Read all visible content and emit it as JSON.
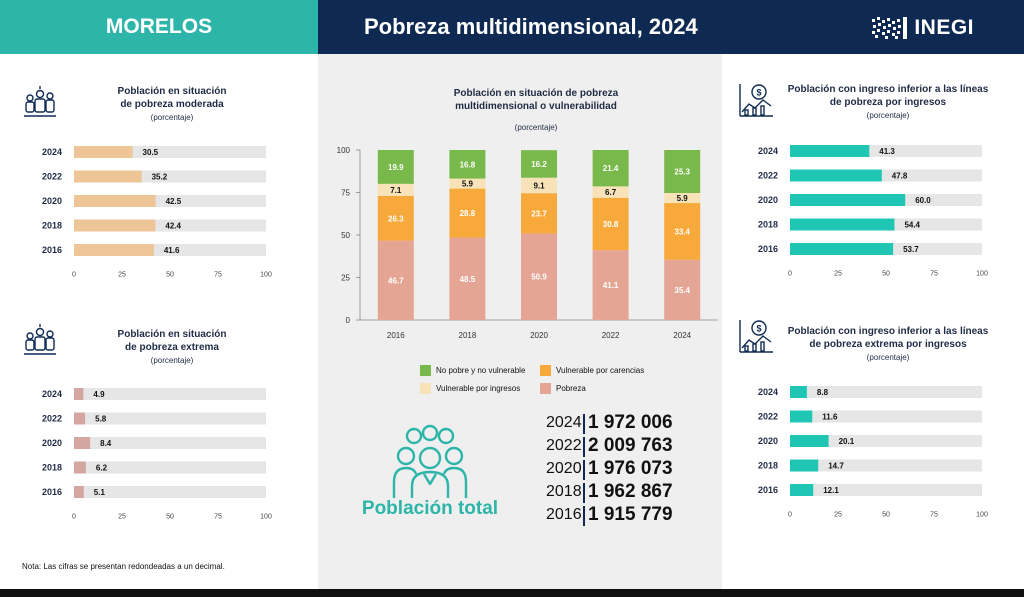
{
  "header": {
    "state": "MORELOS",
    "title": "Pobreza multidimensional, 2024",
    "logo_text": "INEGI"
  },
  "note": "Nota: Las cifras se presentan redondeadas a un decimal.",
  "population": {
    "label": "Población total",
    "rows": [
      {
        "year": "2024",
        "value": "1 972 006"
      },
      {
        "year": "2022",
        "value": "2 009 763"
      },
      {
        "year": "2020",
        "value": "1 976 073"
      },
      {
        "year": "2018",
        "value": "1 962 867"
      },
      {
        "year": "2016",
        "value": "1 915 779"
      }
    ]
  },
  "colors": {
    "teal": "#2cb5a8",
    "navy": "#0f2a52",
    "moderada": "#eec596",
    "extrema": "#d4a6a2",
    "track": "#e6e6e6",
    "ingreso": "#1fc6b3",
    "no_pobre": "#79b84a",
    "vuln_ingresos": "#f8e3b8",
    "vuln_carencias": "#f8a93c",
    "pobreza": "#e5a594"
  },
  "icons": [
    "people-icon",
    "people-icon",
    "income-chart-icon",
    "income-chart-icon",
    "population-group-icon",
    "inegi-logo-icon"
  ],
  "chart_data": [
    {
      "id": "moderada",
      "type": "bar",
      "orientation": "horizontal",
      "title": "Población en situación\nde pobreza moderada",
      "subtitle": "(porcentaje)",
      "categories": [
        "2024",
        "2022",
        "2020",
        "2018",
        "2016"
      ],
      "values": [
        30.5,
        35.2,
        42.5,
        42.4,
        41.6
      ],
      "value_labels": [
        "30.5",
        "35.2",
        "42.5",
        "42.4",
        "41.6"
      ],
      "xlim": [
        0,
        100
      ],
      "xticks": [
        "0",
        "25",
        "50",
        "75",
        "100"
      ]
    },
    {
      "id": "extrema",
      "type": "bar",
      "orientation": "horizontal",
      "title": "Población en situación\nde pobreza extrema",
      "subtitle": "(porcentaje)",
      "categories": [
        "2024",
        "2022",
        "2020",
        "2018",
        "2016"
      ],
      "values": [
        4.9,
        5.8,
        8.4,
        6.2,
        5.1
      ],
      "value_labels": [
        "4.9",
        "5.8",
        "8.4",
        "6.2",
        "5.1"
      ],
      "xlim": [
        0,
        100
      ],
      "xticks": [
        "0",
        "25",
        "50",
        "75",
        "100"
      ]
    },
    {
      "id": "ingreso",
      "type": "bar",
      "orientation": "horizontal",
      "title": "Población con ingreso inferior a las líneas\nde pobreza por ingresos",
      "subtitle": "(porcentaje)",
      "categories": [
        "2024",
        "2022",
        "2020",
        "2018",
        "2016"
      ],
      "values": [
        41.3,
        47.8,
        60.0,
        54.4,
        53.7
      ],
      "value_labels": [
        "41.3",
        "47.8",
        "60.0",
        "54.4",
        "53.7"
      ],
      "xlim": [
        0,
        100
      ],
      "xticks": [
        "0",
        "25",
        "50",
        "75",
        "100"
      ]
    },
    {
      "id": "ingreso_extrema",
      "type": "bar",
      "orientation": "horizontal",
      "title": "Población con ingreso inferior a las líneas\nde pobreza extrema por ingresos",
      "subtitle": "(porcentaje)",
      "categories": [
        "2024",
        "2022",
        "2020",
        "2018",
        "2016"
      ],
      "values": [
        8.8,
        11.6,
        20.1,
        14.7,
        12.1
      ],
      "value_labels": [
        "8.8",
        "11.6",
        "20.1",
        "14.7",
        "12.1"
      ],
      "xlim": [
        0,
        100
      ],
      "xticks": [
        "0",
        "25",
        "50",
        "75",
        "100"
      ]
    },
    {
      "id": "multidim",
      "type": "bar",
      "stacked": true,
      "title": "Población en situación de pobreza\nmultidimensional o vulnerabilidad",
      "subtitle": "(porcentaje)",
      "categories": [
        "2016",
        "2018",
        "2020",
        "2022",
        "2024"
      ],
      "ylim": [
        0,
        100
      ],
      "yticks": [
        "0",
        "25",
        "50",
        "75",
        "100"
      ],
      "series": [
        {
          "name": "Pobreza",
          "values": [
            46.7,
            48.5,
            50.9,
            41.1,
            35.4
          ],
          "labels": [
            "46.7",
            "48.5",
            "50.9",
            "41.1",
            "35.4"
          ]
        },
        {
          "name": "Vulnerable por carencias",
          "values": [
            26.3,
            28.8,
            23.7,
            30.8,
            33.4
          ],
          "labels": [
            "26.3",
            "28.8",
            "23.7",
            "30.8",
            "33.4"
          ]
        },
        {
          "name": "Vulnerable por ingresos",
          "values": [
            7.1,
            5.9,
            9.1,
            6.7,
            5.9
          ],
          "labels": [
            "7.1",
            "5.9",
            "9.1",
            "6.7",
            "5.9"
          ]
        },
        {
          "name": "No pobre y no vulnerable",
          "values": [
            19.9,
            16.8,
            16.2,
            21.4,
            25.3
          ],
          "labels": [
            "19.9",
            "16.8",
            "16.2",
            "21.4",
            "25.3"
          ]
        }
      ]
    }
  ]
}
